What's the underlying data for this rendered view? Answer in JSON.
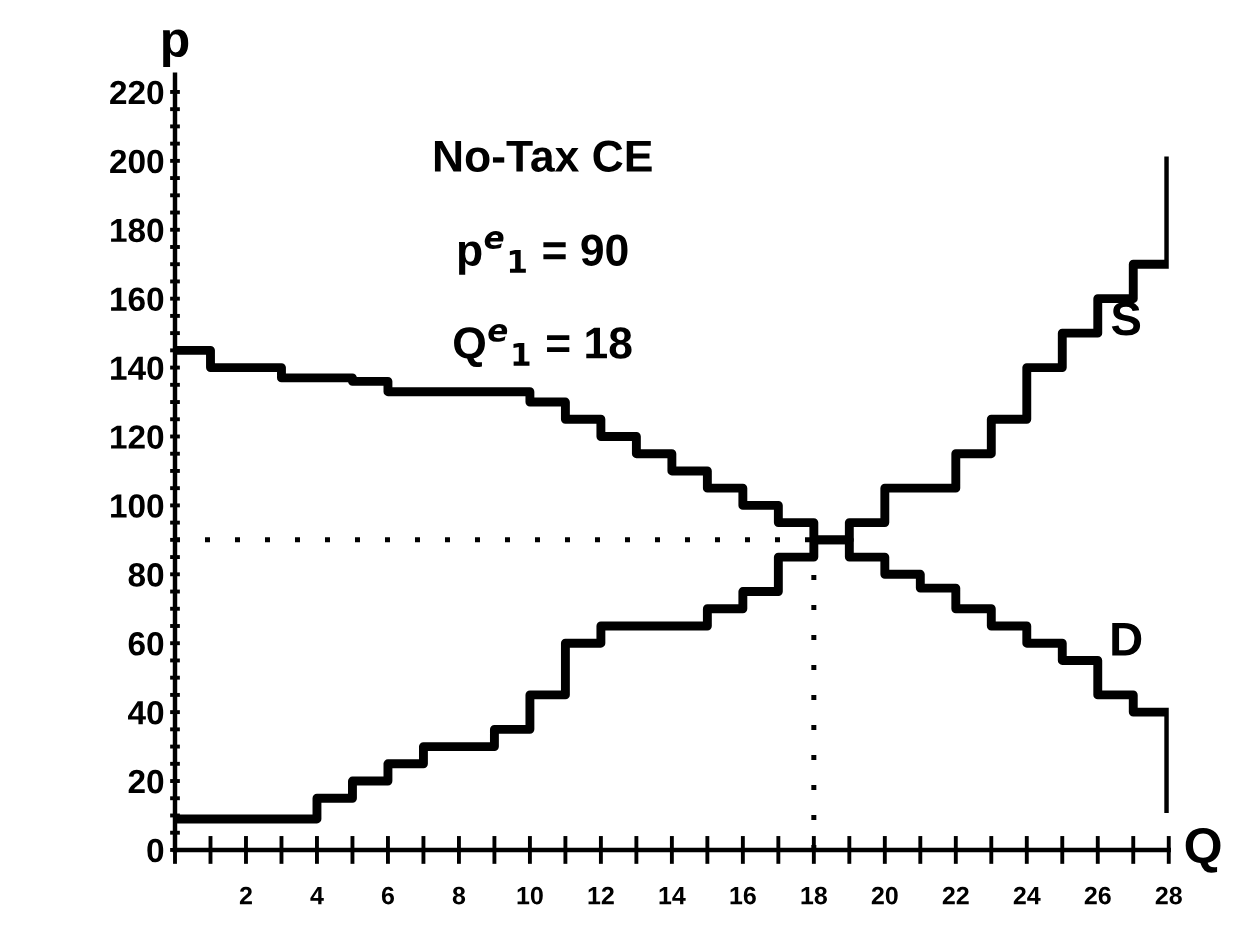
{
  "chart_data": {
    "type": "step",
    "xlabel": "Q",
    "ylabel": "p",
    "x": [
      0,
      1,
      2,
      3,
      4,
      5,
      6,
      7,
      8,
      9,
      10,
      11,
      12,
      13,
      14,
      15,
      16,
      17,
      18,
      19,
      20,
      21,
      22,
      23,
      24,
      25,
      26,
      27,
      28
    ],
    "series": [
      {
        "name": "S",
        "color": "#000000",
        "values": [
          9,
          9,
          9,
          9,
          15,
          20,
          25,
          30,
          30,
          35,
          45,
          60,
          65,
          65,
          65,
          70,
          75,
          85,
          90,
          95,
          105,
          105,
          115,
          125,
          140,
          150,
          160,
          170,
          200
        ]
      },
      {
        "name": "D",
        "color": "#000000",
        "values": [
          145,
          140,
          140,
          137,
          137,
          136,
          133,
          133,
          133,
          133,
          130,
          125,
          120,
          115,
          110,
          105,
          100,
          95,
          90,
          85,
          80,
          76,
          70,
          65,
          60,
          55,
          45,
          40,
          12
        ]
      }
    ],
    "annotations": [
      "No-Tax CE",
      "p$^{e}$$_{1}$ = 90",
      "Q$^{e}$$_{1}$ = 18"
    ],
    "ref_lines": [
      {
        "axis": "y",
        "value": 90,
        "line_style": "dotted"
      },
      {
        "axis": "x",
        "value": 18,
        "line_style": "dotted"
      }
    ],
    "xlim": [
      0,
      28
    ],
    "ylim": [
      0,
      225
    ],
    "xticks": [
      {
        "value": 0,
        "label": null
      },
      {
        "value": 1,
        "label": null
      },
      2,
      {
        "value": 3,
        "label": null
      },
      4,
      {
        "value": 5,
        "label": null
      },
      6,
      {
        "value": 7,
        "label": null
      },
      8,
      {
        "value": 9,
        "label": null
      },
      10,
      {
        "value": 11,
        "label": null
      },
      12,
      {
        "value": 13,
        "label": null
      },
      14,
      {
        "value": 15,
        "label": null
      },
      16,
      {
        "value": 17,
        "label": null
      },
      18,
      {
        "value": 19,
        "label": null
      },
      20,
      {
        "value": 21,
        "label": null
      },
      22,
      {
        "value": 23,
        "label": null
      },
      24,
      {
        "value": 25,
        "label": null
      },
      26,
      {
        "value": 27,
        "label": null
      },
      28
    ],
    "yticks": [
      0,
      {
        "value": 5,
        "label": null
      },
      {
        "value": 10,
        "label": null
      },
      {
        "value": 15,
        "label": null
      },
      20,
      {
        "value": 25,
        "label": null
      },
      {
        "value": 30,
        "label": null
      },
      {
        "value": 35,
        "label": null
      },
      40,
      {
        "value": 45,
        "label": null
      },
      {
        "value": 50,
        "label": null
      },
      {
        "value": 55,
        "label": null
      },
      60,
      {
        "value": 65,
        "label": null
      },
      {
        "value": 70,
        "label": null
      },
      {
        "value": 75,
        "label": null
      },
      80,
      {
        "value": 85,
        "label": null
      },
      {
        "value": 90,
        "label": null
      },
      {
        "value": 95,
        "label": null
      },
      100,
      {
        "value": 105,
        "label": null
      },
      {
        "value": 110,
        "label": null
      },
      {
        "value": 115,
        "label": null
      },
      120,
      {
        "value": 125,
        "label": null
      },
      {
        "value": 130,
        "label": null
      },
      {
        "value": 135,
        "label": null
      },
      140,
      {
        "value": 145,
        "label": null
      },
      {
        "value": 150,
        "label": null
      },
      {
        "value": 155,
        "label": null
      },
      160,
      {
        "value": 165,
        "label": null
      },
      {
        "value": 170,
        "label": null
      },
      {
        "value": 175,
        "label": null
      },
      180,
      {
        "value": 185,
        "label": null
      },
      {
        "value": 190,
        "label": null
      },
      {
        "value": 195,
        "label": null
      },
      200,
      {
        "value": 205,
        "label": null
      },
      {
        "value": 210,
        "label": null
      },
      {
        "value": 215,
        "label": null
      },
      220
    ],
    "grid": false,
    "legend": false,
    "marker": "none",
    "line_style": "solid"
  }
}
